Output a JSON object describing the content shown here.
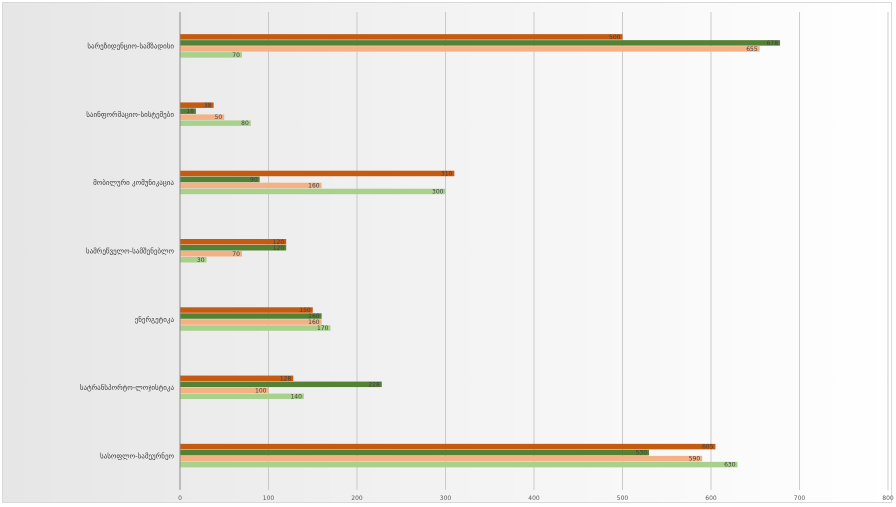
{
  "chart_data": {
    "type": "bar",
    "orientation": "horizontal",
    "title": "",
    "xlabel": "",
    "ylabel": "",
    "xlim": [
      0,
      800
    ],
    "xticks": [
      "0",
      "100",
      "200",
      "300",
      "400",
      "500",
      "600",
      "700",
      "800"
    ],
    "grid": true,
    "legend": "none",
    "categories": [
      "სარეზიდენციო-სამზადისი",
      "საინფორმაციო-სისტემები",
      "მობილური კომუნიკაცია",
      "სამრეწველო-სამშენებლო",
      "ენერგეტიკა",
      "სატრანსპორტო-ლოჯისტიკა",
      "სასოფლო-სამეურნეო"
    ],
    "series": [
      {
        "color": "#c55a11",
        "values": [
          500,
          38,
          310,
          120,
          150,
          128,
          605
        ]
      },
      {
        "color": "#548235",
        "values": [
          678,
          18,
          90,
          120,
          160,
          228,
          530
        ]
      },
      {
        "color": "#f4b183",
        "values": [
          655,
          50,
          160,
          70,
          160,
          100,
          590
        ]
      },
      {
        "color": "#a9d18e",
        "values": [
          70,
          80,
          300,
          30,
          170,
          140,
          630
        ]
      }
    ]
  }
}
